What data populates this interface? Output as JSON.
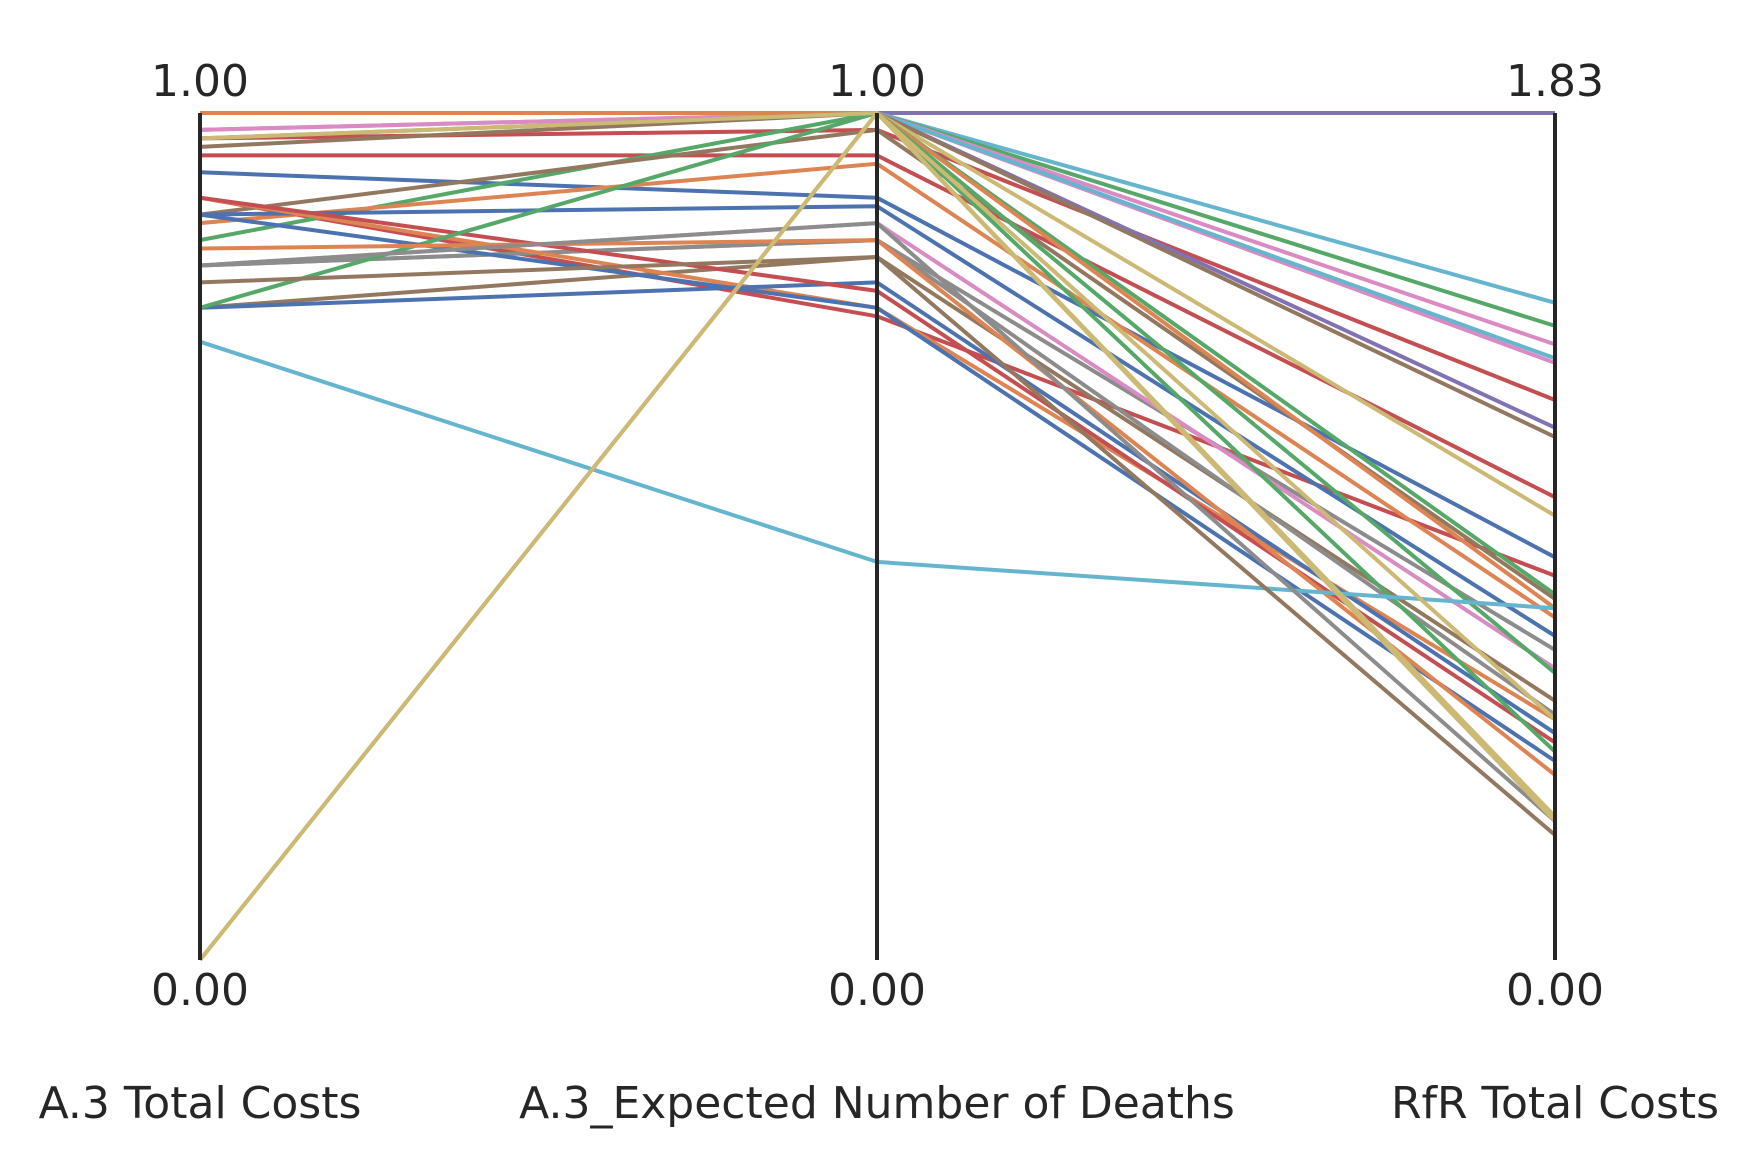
{
  "chart_data": {
    "type": "parallel-coordinates",
    "title": "",
    "axes": [
      {
        "name": "A.3 Total Costs",
        "min": 0.0,
        "max": 1.0,
        "min_label": "0.00",
        "max_label": "1.00"
      },
      {
        "name": "A.3_Expected Number of Deaths",
        "min": 0.0,
        "max": 1.0,
        "min_label": "0.00",
        "max_label": "1.00"
      },
      {
        "name": "RfR Total Costs",
        "min": 0.0,
        "max": 1.83,
        "min_label": "0.00",
        "max_label": "1.83"
      }
    ],
    "grid": false,
    "legend": "none",
    "palette": [
      "#4c72b0",
      "#dd8452",
      "#55a868",
      "#c44e52",
      "#8172b3",
      "#937860",
      "#da8bc3",
      "#8c8c8c",
      "#ccb974",
      "#64b5cd"
    ],
    "lines": [
      {
        "values": [
          1.0,
          1.0,
          1.83
        ],
        "color": "#8172b3"
      },
      {
        "values": [
          1.0,
          1.0,
          1.42
        ],
        "color": "#64b5cd"
      },
      {
        "values": [
          1.0,
          1.0,
          1.37
        ],
        "color": "#55a868"
      },
      {
        "values": [
          0.98,
          1.0,
          1.33
        ],
        "color": "#da8bc3"
      },
      {
        "values": [
          0.98,
          1.0,
          1.29
        ],
        "color": "#da8bc3"
      },
      {
        "values": [
          1.0,
          1.0,
          1.3
        ],
        "color": "#64b5cd"
      },
      {
        "values": [
          0.97,
          0.98,
          1.21
        ],
        "color": "#c44e52"
      },
      {
        "values": [
          1.0,
          1.0,
          1.15
        ],
        "color": "#8172b3"
      },
      {
        "values": [
          0.96,
          1.0,
          1.13
        ],
        "color": "#937860"
      },
      {
        "values": [
          0.95,
          0.95,
          1.0
        ],
        "color": "#c44e52"
      },
      {
        "values": [
          1.0,
          1.0,
          0.96
        ],
        "color": "#ccb974"
      },
      {
        "values": [
          0.93,
          0.9,
          0.87
        ],
        "color": "#4c72b0"
      },
      {
        "values": [
          0.9,
          0.76,
          0.83
        ],
        "color": "#c44e52"
      },
      {
        "values": [
          0.85,
          1.0,
          0.79
        ],
        "color": "#55a868"
      },
      {
        "values": [
          0.88,
          0.98,
          0.78
        ],
        "color": "#937860"
      },
      {
        "values": [
          1.0,
          1.0,
          0.76
        ],
        "color": "#dd8452"
      },
      {
        "values": [
          0.87,
          0.94,
          0.74
        ],
        "color": "#dd8452"
      },
      {
        "values": [
          0.88,
          0.89,
          0.7
        ],
        "color": "#4c72b0"
      },
      {
        "values": [
          0.82,
          0.85,
          0.67
        ],
        "color": "#8c8c8c"
      },
      {
        "values": [
          0.82,
          0.87,
          0.63
        ],
        "color": "#da8bc3"
      },
      {
        "values": [
          0.97,
          1.0,
          0.62
        ],
        "color": "#55a868"
      },
      {
        "values": [
          0.77,
          0.83,
          0.56
        ],
        "color": "#937860"
      },
      {
        "values": [
          0.82,
          0.85,
          0.53
        ],
        "color": "#8c8c8c"
      },
      {
        "values": [
          0.9,
          0.77,
          0.52
        ],
        "color": "#dd8452"
      },
      {
        "values": [
          0.77,
          0.8,
          0.49
        ],
        "color": "#4c72b0"
      },
      {
        "values": [
          0.9,
          0.79,
          0.47
        ],
        "color": "#c44e52"
      },
      {
        "values": [
          0.77,
          1.0,
          0.45
        ],
        "color": "#55a868"
      },
      {
        "values": [
          0.88,
          0.77,
          0.43
        ],
        "color": "#4c72b0"
      },
      {
        "values": [
          0.84,
          0.85,
          0.4
        ],
        "color": "#dd8452"
      },
      {
        "values": [
          0.73,
          0.47,
          0.76
        ],
        "color": "#64b5cd"
      },
      {
        "values": [
          0.97,
          1.0,
          0.52
        ],
        "color": "#ccb974"
      },
      {
        "values": [
          0.8,
          0.83,
          0.27
        ],
        "color": "#937860"
      },
      {
        "values": [
          0.82,
          0.87,
          0.3
        ],
        "color": "#8c8c8c"
      },
      {
        "values": [
          0.0,
          1.0,
          0.31
        ],
        "color": "#ccb974"
      },
      {
        "values": [
          0.0,
          1.0,
          0.3
        ],
        "color": "#ccb974"
      }
    ]
  }
}
